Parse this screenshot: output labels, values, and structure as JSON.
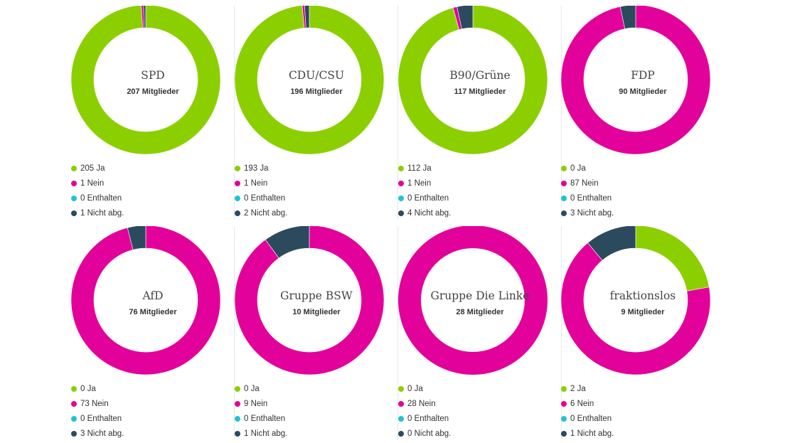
{
  "colors": {
    "ja": "#8ccf00",
    "nein": "#e2019a",
    "enthalten": "#1fc4d4",
    "nicht_abg": "#2c4a5e"
  },
  "chart_data": [
    {
      "type": "pie",
      "title": "SPD",
      "subtitle": "207 Mitglieder",
      "categories": [
        "Ja",
        "Nein",
        "Enthalten",
        "Nicht abg."
      ],
      "values": [
        205,
        1,
        0,
        1
      ],
      "labels": [
        "205 Ja",
        "1 Nein",
        "0 Enthalten",
        "1 Nicht abg."
      ]
    },
    {
      "type": "pie",
      "title": "CDU/CSU",
      "subtitle": "196 Mitglieder",
      "categories": [
        "Ja",
        "Nein",
        "Enthalten",
        "Nicht abg."
      ],
      "values": [
        193,
        1,
        0,
        2
      ],
      "labels": [
        "193 Ja",
        "1 Nein",
        "0 Enthalten",
        "2 Nicht abg."
      ]
    },
    {
      "type": "pie",
      "title": "B90/Grüne",
      "subtitle": "117 Mitglieder",
      "categories": [
        "Ja",
        "Nein",
        "Enthalten",
        "Nicht abg."
      ],
      "values": [
        112,
        1,
        0,
        4
      ],
      "labels": [
        "112 Ja",
        "1 Nein",
        "0 Enthalten",
        "4 Nicht abg."
      ]
    },
    {
      "type": "pie",
      "title": "FDP",
      "subtitle": "90 Mitglieder",
      "categories": [
        "Ja",
        "Nein",
        "Enthalten",
        "Nicht abg."
      ],
      "values": [
        0,
        87,
        0,
        3
      ],
      "labels": [
        "0 Ja",
        "87 Nein",
        "0 Enthalten",
        "3 Nicht abg."
      ]
    },
    {
      "type": "pie",
      "title": "AfD",
      "subtitle": "76 Mitglieder",
      "categories": [
        "Ja",
        "Nein",
        "Enthalten",
        "Nicht abg."
      ],
      "values": [
        0,
        73,
        0,
        3
      ],
      "labels": [
        "0 Ja",
        "73 Nein",
        "0 Enthalten",
        "3 Nicht abg."
      ]
    },
    {
      "type": "pie",
      "title": "Gruppe BSW",
      "subtitle": "10 Mitglieder",
      "categories": [
        "Ja",
        "Nein",
        "Enthalten",
        "Nicht abg."
      ],
      "values": [
        0,
        9,
        0,
        1
      ],
      "labels": [
        "0 Ja",
        "9 Nein",
        "0 Enthalten",
        "1 Nicht abg."
      ]
    },
    {
      "type": "pie",
      "title": "Gruppe Die Linke",
      "subtitle": "28 Mitglieder",
      "categories": [
        "Ja",
        "Nein",
        "Enthalten",
        "Nicht abg."
      ],
      "values": [
        0,
        28,
        0,
        0
      ],
      "labels": [
        "0 Ja",
        "28 Nein",
        "0 Enthalten",
        "0 Nicht abg."
      ]
    },
    {
      "type": "pie",
      "title": "fraktionslos",
      "subtitle": "9 Mitglieder",
      "categories": [
        "Ja",
        "Nein",
        "Enthalten",
        "Nicht abg."
      ],
      "values": [
        2,
        6,
        0,
        1
      ],
      "labels": [
        "2 Ja",
        "6 Nein",
        "0 Enthalten",
        "1 Nicht abg."
      ]
    }
  ]
}
